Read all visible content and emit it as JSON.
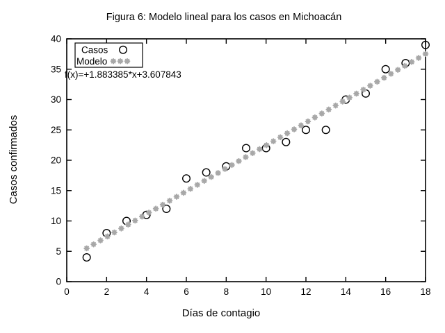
{
  "chart_data": {
    "type": "scatter",
    "title": "Figura 6: Modelo lineal para los casos en Michoacán",
    "xlabel": "Días de contagio",
    "ylabel": "Casos confirmados",
    "xlim": [
      0,
      18
    ],
    "ylim": [
      0,
      40
    ],
    "xticks": [
      0,
      2,
      4,
      6,
      8,
      10,
      12,
      14,
      16,
      18
    ],
    "yticks": [
      0,
      5,
      10,
      15,
      20,
      25,
      30,
      35,
      40
    ],
    "grid": false,
    "legend_position": "top-left",
    "annotation": "f(x)=+1.883385*x+3.607843",
    "series": [
      {
        "name": "Casos",
        "type": "points",
        "marker": "open-circle",
        "color": "#000000",
        "x": [
          1,
          2,
          3,
          4,
          5,
          6,
          7,
          8,
          9,
          10,
          11,
          12,
          13,
          14,
          15,
          16,
          17,
          18
        ],
        "y": [
          4,
          8,
          10,
          11,
          12,
          17,
          18,
          19,
          22,
          22,
          23,
          25,
          25,
          30,
          31,
          35,
          36,
          39
        ]
      },
      {
        "name": "Modelo",
        "type": "function-points",
        "marker": "asterisk",
        "color": "#a8a8a8",
        "slope": 1.883385,
        "intercept": 3.607843,
        "x_start": 1,
        "x_end": 18,
        "samples": 50
      }
    ]
  }
}
